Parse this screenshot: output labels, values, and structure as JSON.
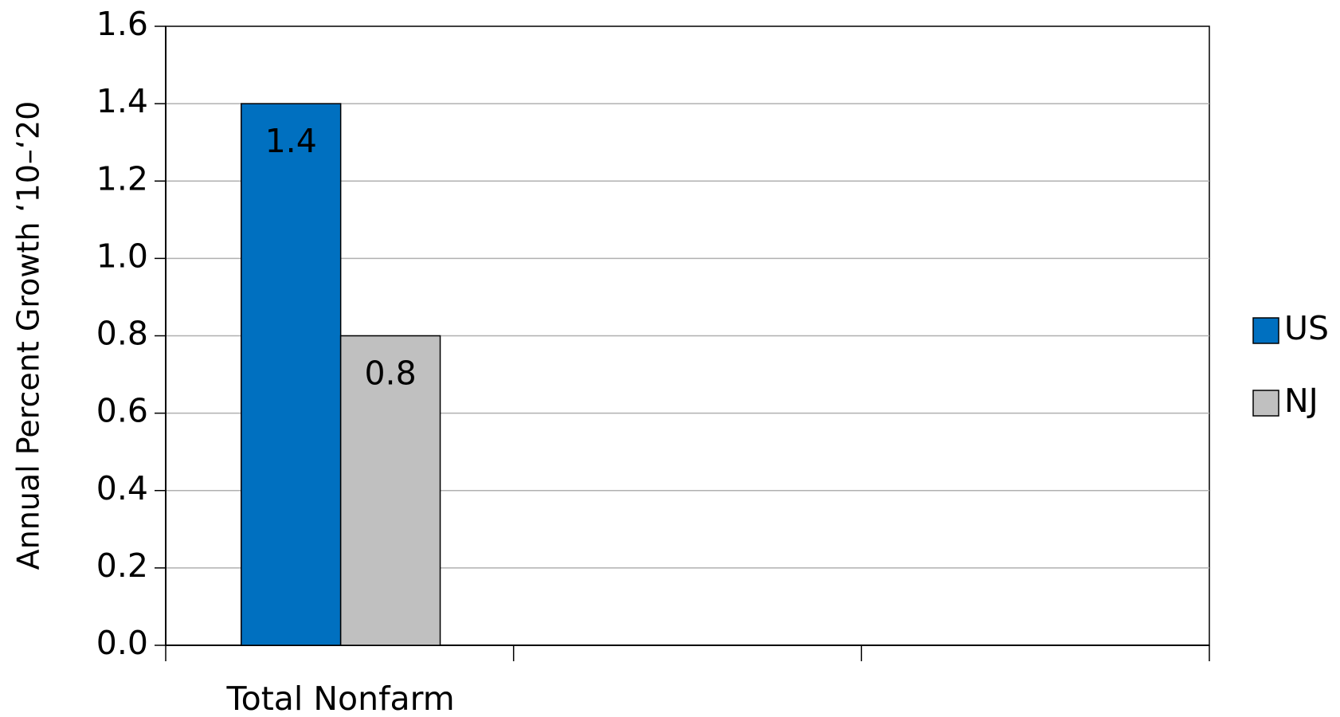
{
  "chart_data": {
    "type": "bar",
    "y_label": "Annual Percent Growth ‘10–‘20",
    "categories": [
      "Total Nonfarm",
      null,
      null
    ],
    "series": [
      {
        "name": "US",
        "color": "#0070c0",
        "values": [
          1.4,
          null,
          null
        ]
      },
      {
        "name": "NJ",
        "color": "#c0c0c0",
        "values": [
          0.8,
          null,
          null
        ]
      }
    ],
    "ylim": [
      0,
      1.6
    ],
    "yticks": [
      {
        "value": 0,
        "label": "0.0"
      },
      0.2,
      0.4,
      0.6,
      0.8,
      {
        "value": 1,
        "label": "1.0"
      },
      1.2,
      1.4,
      1.6
    ],
    "grid": true,
    "legend": "right"
  }
}
